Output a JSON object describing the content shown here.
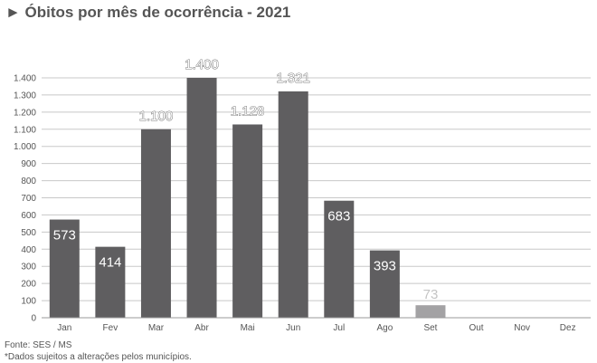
{
  "title": "► Óbitos por mês de ocorrência - 2021",
  "chart_data": {
    "type": "bar",
    "categories": [
      "Jan",
      "Fev",
      "Mar",
      "Abr",
      "Mai",
      "Jun",
      "Jul",
      "Ago",
      "Set",
      "Out",
      "Nov",
      "Dez"
    ],
    "values": [
      573,
      414,
      1100,
      1400,
      1128,
      1321,
      683,
      393,
      73,
      null,
      null,
      null
    ],
    "data_labels": [
      "573",
      "414",
      "1.100",
      "1.400",
      "1.128",
      "1.321",
      "683",
      "393",
      "73",
      "",
      "",
      ""
    ],
    "y_ticks": [
      0,
      100,
      200,
      300,
      400,
      500,
      600,
      700,
      800,
      900,
      1000,
      1100,
      1200,
      1300,
      1400
    ],
    "y_tick_labels": [
      "0",
      "100",
      "200",
      "300",
      "400",
      "500",
      "600",
      "700",
      "800",
      "900",
      "1.000",
      "1.100",
      "1.200",
      "1.300",
      "1.400"
    ],
    "ylim": [
      0,
      1400
    ],
    "grid": true,
    "colors": {
      "bar": "#5f5e60",
      "bar_partial": "#a3a2a4",
      "grid": "#c8c8c8",
      "text": "#555555"
    }
  },
  "footer": {
    "source": "Fonte: SES / MS",
    "note": "*Dados sujeitos a alterações pelos municípios."
  }
}
